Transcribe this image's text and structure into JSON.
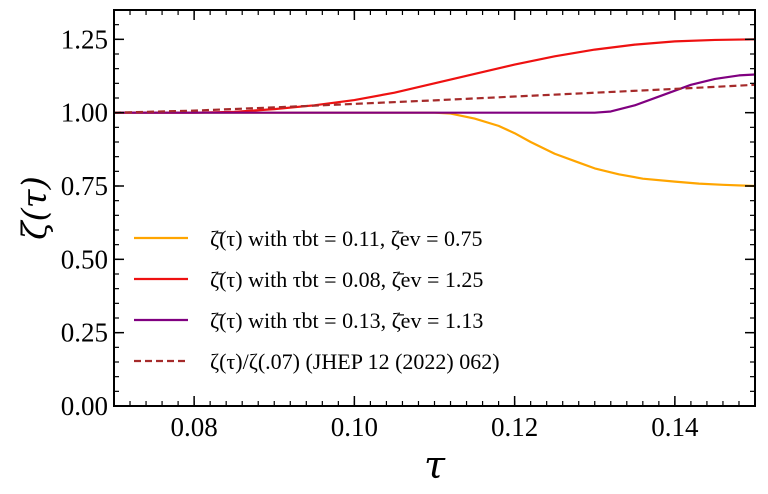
{
  "chart_data": {
    "type": "line",
    "xlabel": "τ",
    "ylabel": "ζ(τ)",
    "xlim": [
      0.07,
      0.15
    ],
    "ylim": [
      0.0,
      1.35
    ],
    "xticks": [
      0.08,
      0.1,
      0.12,
      0.14
    ],
    "xtick_labels": [
      "0.08",
      "0.10",
      "0.12",
      "0.14"
    ],
    "yticks": [
      0.0,
      0.25,
      0.5,
      0.75,
      1.0,
      1.25
    ],
    "ytick_labels": [
      "0.00",
      "0.25",
      "0.50",
      "0.75",
      "1.00",
      "1.25"
    ],
    "grid": false,
    "legend_position": "lower-left",
    "series": [
      {
        "name": "ζ̄(τ) with τbt = 0.11, ζ̄ev = 0.75",
        "color": "#ffa500",
        "dash": "solid",
        "x": [
          0.07,
          0.08,
          0.09,
          0.1,
          0.11,
          0.112,
          0.115,
          0.118,
          0.12,
          0.122,
          0.125,
          0.128,
          0.13,
          0.133,
          0.136,
          0.14,
          0.143,
          0.146,
          0.15
        ],
        "values": [
          1.0,
          1.0,
          1.0,
          1.0,
          1.0,
          0.997,
          0.98,
          0.955,
          0.93,
          0.9,
          0.86,
          0.83,
          0.81,
          0.79,
          0.775,
          0.765,
          0.758,
          0.754,
          0.75
        ]
      },
      {
        "name": "ζ̄(τ) with τbt = 0.08, ζ̄ev = 1.25",
        "color": "#ee1111",
        "dash": "solid",
        "x": [
          0.07,
          0.08,
          0.085,
          0.09,
          0.095,
          0.1,
          0.105,
          0.11,
          0.115,
          0.12,
          0.125,
          0.13,
          0.135,
          0.14,
          0.145,
          0.15
        ],
        "values": [
          1.0,
          1.0,
          1.003,
          1.012,
          1.025,
          1.043,
          1.068,
          1.1,
          1.132,
          1.164,
          1.192,
          1.215,
          1.232,
          1.243,
          1.248,
          1.25
        ]
      },
      {
        "name": "ζ̄(τ) with τbt = 0.13, ζ̄ev = 1.13",
        "color": "#800080",
        "dash": "solid",
        "x": [
          0.07,
          0.08,
          0.09,
          0.1,
          0.11,
          0.12,
          0.13,
          0.132,
          0.135,
          0.138,
          0.14,
          0.142,
          0.145,
          0.148,
          0.15
        ],
        "values": [
          1.0,
          1.0,
          1.0,
          1.0,
          1.0,
          1.0,
          1.0,
          1.004,
          1.025,
          1.055,
          1.075,
          1.095,
          1.115,
          1.127,
          1.13
        ]
      },
      {
        "name": "ζ(τ)/ζ(.07) (JHEP 12 (2022) 062)",
        "color": "#a52a2a",
        "dash": "dashed",
        "x": [
          0.07,
          0.08,
          0.09,
          0.1,
          0.11,
          0.12,
          0.13,
          0.14,
          0.15
        ],
        "values": [
          1.0,
          1.007,
          1.018,
          1.03,
          1.042,
          1.055,
          1.068,
          1.081,
          1.095
        ]
      }
    ]
  }
}
